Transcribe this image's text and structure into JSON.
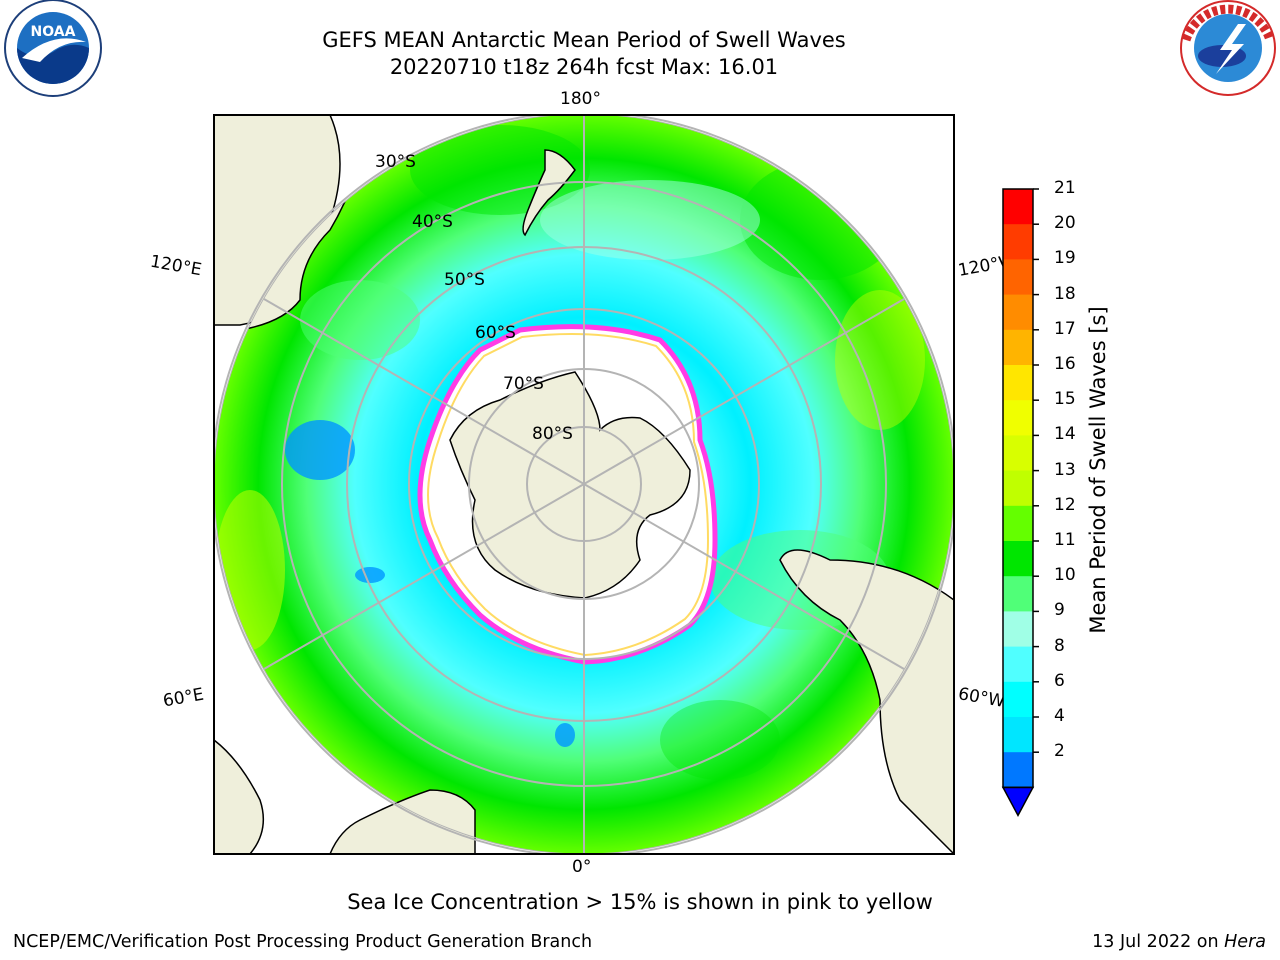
{
  "title": {
    "line1": "GEFS MEAN Antarctic Mean Period of Swell Waves",
    "line2": "20220710 t18z 264h fcst   Max: 16.01"
  },
  "map_labels": {
    "lon_180": "180°",
    "lon_0": "0°",
    "lon_120e": "120°E",
    "lon_60e": "60°E",
    "lon_120w": "120°W",
    "lon_60w": "60°W",
    "lat_30": "30°S",
    "lat_40": "40°S",
    "lat_50": "50°S",
    "lat_60": "60°S",
    "lat_70": "70°S",
    "lat_80": "80°S"
  },
  "colorbar": {
    "label": "Mean Period of Swell Waves [s]",
    "ticks": [
      "21",
      "20",
      "19",
      "18",
      "17",
      "16",
      "15",
      "14",
      "13",
      "12",
      "11",
      "10",
      "9",
      "8",
      "6",
      "4",
      "2"
    ],
    "colors": [
      "#ff0000",
      "#ff3c00",
      "#ff6400",
      "#ff8c00",
      "#ffb400",
      "#ffe600",
      "#f0ff00",
      "#d8ff00",
      "#c0ff00",
      "#64ff00",
      "#00e600",
      "#50ff78",
      "#a0ffe6",
      "#50ffff",
      "#00ffff",
      "#00e6ff",
      "#0078ff"
    ],
    "extend_color": "#0000ff"
  },
  "colors": {
    "land": "#efefdb",
    "ice_edge": "#ff3ce6",
    "ice_inner": "#ffd23c",
    "grid": "#b4b4b4"
  },
  "caption": "Sea Ice Concentration > 15% is shown in pink to yellow",
  "footer": {
    "left": "NCEP/EMC/Verification Post Processing Product Generation Branch",
    "date": "13 Jul 2022 on ",
    "host": "Hera"
  },
  "logos": {
    "noaa_text": "NOAA",
    "noaa_ring": "NATIONAL OCEANIC AND ATMOSPHERIC ADMINISTRATION",
    "nws_ring": "NATIONAL WEATHER SERVICE"
  }
}
